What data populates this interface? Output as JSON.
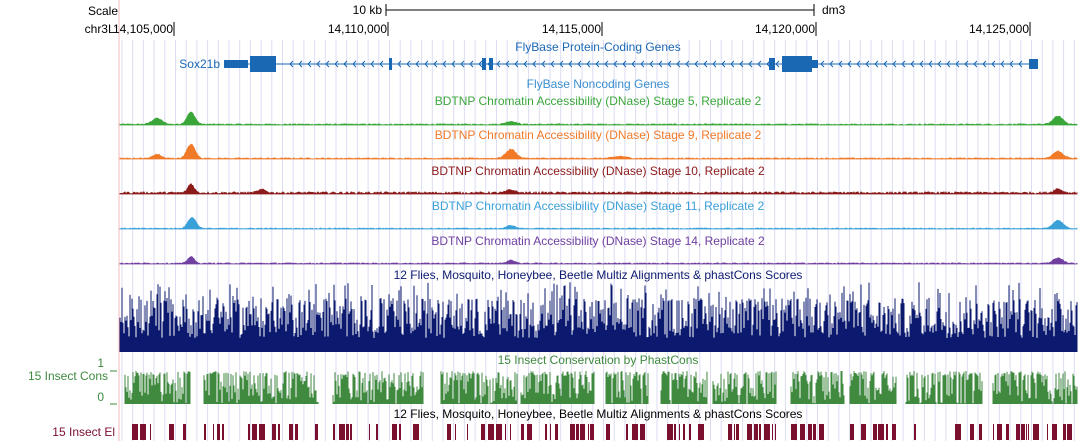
{
  "browser": {
    "scale_label": "Scale",
    "scale_bar_label": "10 kb",
    "assembly": "dm3",
    "chrom_label": "chr3L:",
    "positions": [
      "14,105,000",
      "14,110,000",
      "14,115,000",
      "14,120,000",
      "14,125,000"
    ]
  },
  "tracks": {
    "protein_coding": {
      "title": "FlyBase Protein-Coding Genes",
      "gene": "Sox21b",
      "color": "#1a67b4"
    },
    "noncoding": {
      "title": "FlyBase Noncoding Genes",
      "color": "#3a8fd0"
    },
    "dnase": [
      {
        "title": "BDTNP Chromatin Accessibility (DNase) Stage 5, Replicate 2",
        "color": "#3aa63a"
      },
      {
        "title": "BDTNP Chromatin Accessibility (DNase) Stage 9, Replicate 2",
        "color": "#f07a28"
      },
      {
        "title": "BDTNP Chromatin Accessibility (DNase) Stage 10, Replicate 2",
        "color": "#8b1a1a"
      },
      {
        "title": "BDTNP Chromatin Accessibility (DNase) Stage 11, Replicate 2",
        "color": "#3aa0d8"
      },
      {
        "title": "BDTNP Chromatin Accessibility (DNase) Stage 14, Replicate 2",
        "color": "#7040a0"
      }
    ],
    "multiz": {
      "title": "12 Flies, Mosquito, Honeybee, Beetle Multiz Alignments & phastCons Scores",
      "color": "#0b1a6e"
    },
    "phastcons": {
      "title": "15 Insect Conservation by PhastCons",
      "side_label": "15 Insect Cons",
      "y_max": "1",
      "y_min": "0",
      "color": "#3f8a3f"
    },
    "elements": {
      "title": "12 Flies, Mosquito, Honeybee, Beetle Multiz Alignments & phastCons Scores",
      "side_label": "15 Insect El",
      "color": "#7a0f2e"
    }
  }
}
